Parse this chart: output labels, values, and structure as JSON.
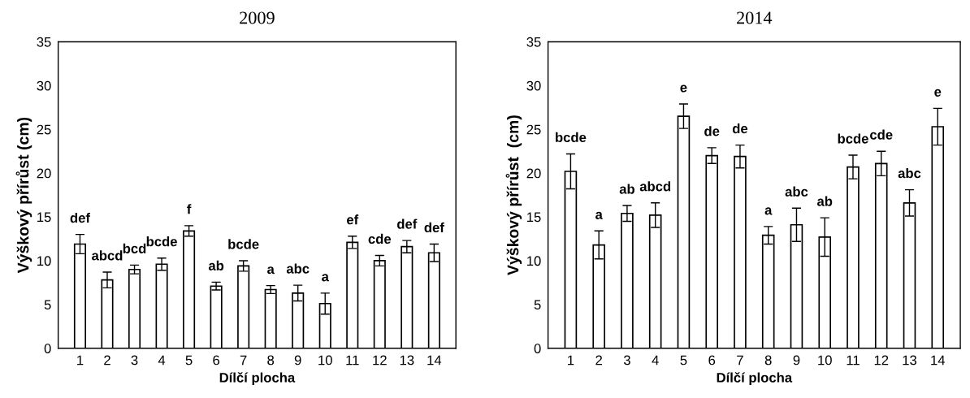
{
  "chart_data": [
    {
      "type": "bar",
      "title": "2009",
      "xlabel": "Dílčí plocha",
      "ylabel": "Výškový přírůst (cm)",
      "categories": [
        "1",
        "2",
        "3",
        "4",
        "5",
        "6",
        "7",
        "8",
        "9",
        "10",
        "11",
        "12",
        "13",
        "14"
      ],
      "series": [
        {
          "color": "#ffffff",
          "values": [
            11.9,
            7.8,
            9.0,
            9.6,
            13.4,
            7.1,
            9.4,
            6.7,
            6.3,
            5.1,
            12.1,
            10.0,
            11.6,
            10.9
          ],
          "errors": [
            1.1,
            0.9,
            0.5,
            0.7,
            0.6,
            0.45,
            0.6,
            0.45,
            0.9,
            1.2,
            0.7,
            0.6,
            0.7,
            1.0
          ]
        }
      ],
      "ylim": [
        0,
        35
      ],
      "yticks": [
        0,
        5,
        10,
        15,
        20,
        25,
        30,
        35
      ],
      "grid": false,
      "legend": false,
      "annotations": [
        {
          "text": "def",
          "x": "1",
          "y": 11.9
        },
        {
          "text": "abcd",
          "x": "2",
          "y": 7.8
        },
        {
          "text": "bcd",
          "x": "3",
          "y": 9.0
        },
        {
          "text": "bcde",
          "x": "4",
          "y": 9.6
        },
        {
          "text": "f",
          "x": "5",
          "y": 13.4
        },
        {
          "text": "ab",
          "x": "6",
          "y": 7.1
        },
        {
          "text": "bcde",
          "x": "7",
          "y": 9.4
        },
        {
          "text": "a",
          "x": "8",
          "y": 6.7
        },
        {
          "text": "abc",
          "x": "9",
          "y": 6.3
        },
        {
          "text": "a",
          "x": "10",
          "y": 5.1
        },
        {
          "text": "ef",
          "x": "11",
          "y": 12.1
        },
        {
          "text": "cde",
          "x": "12",
          "y": 10.0
        },
        {
          "text": "def",
          "x": "13",
          "y": 11.6
        },
        {
          "text": "def",
          "x": "14",
          "y": 10.9
        }
      ]
    },
    {
      "type": "bar",
      "title": "2014",
      "xlabel": "Dílčí plocha",
      "ylabel": "Výškový přírůst  (cm)",
      "categories": [
        "1",
        "2",
        "3",
        "4",
        "5",
        "6",
        "7",
        "8",
        "9",
        "10",
        "11",
        "12",
        "13",
        "14"
      ],
      "series": [
        {
          "color": "#ffffff",
          "values": [
            20.2,
            11.8,
            15.4,
            15.2,
            26.5,
            22.0,
            21.9,
            12.9,
            14.1,
            12.7,
            20.7,
            21.1,
            16.6,
            25.3
          ],
          "errors": [
            2.0,
            1.6,
            0.9,
            1.4,
            1.4,
            0.9,
            1.3,
            1.0,
            1.9,
            2.2,
            1.35,
            1.4,
            1.5,
            2.1
          ]
        }
      ],
      "ylim": [
        0,
        35
      ],
      "yticks": [
        0,
        5,
        10,
        15,
        20,
        25,
        30,
        35
      ],
      "grid": false,
      "legend": false,
      "annotations": [
        {
          "text": "bcde",
          "x": "1",
          "y": 20.2
        },
        {
          "text": "a",
          "x": "2",
          "y": 11.8
        },
        {
          "text": "ab",
          "x": "3",
          "y": 15.4
        },
        {
          "text": "abcd",
          "x": "4",
          "y": 15.2
        },
        {
          "text": "e",
          "x": "5",
          "y": 26.5
        },
        {
          "text": "de",
          "x": "6",
          "y": 22.0
        },
        {
          "text": "de",
          "x": "7",
          "y": 21.9
        },
        {
          "text": "a",
          "x": "8",
          "y": 12.9
        },
        {
          "text": "abc",
          "x": "9",
          "y": 14.1
        },
        {
          "text": "ab",
          "x": "10",
          "y": 12.7
        },
        {
          "text": "bcde",
          "x": "11",
          "y": 20.7
        },
        {
          "text": "cde",
          "x": "12",
          "y": 21.1
        },
        {
          "text": "abc",
          "x": "13",
          "y": 16.6
        },
        {
          "text": "e",
          "x": "14",
          "y": 25.3
        }
      ]
    }
  ]
}
